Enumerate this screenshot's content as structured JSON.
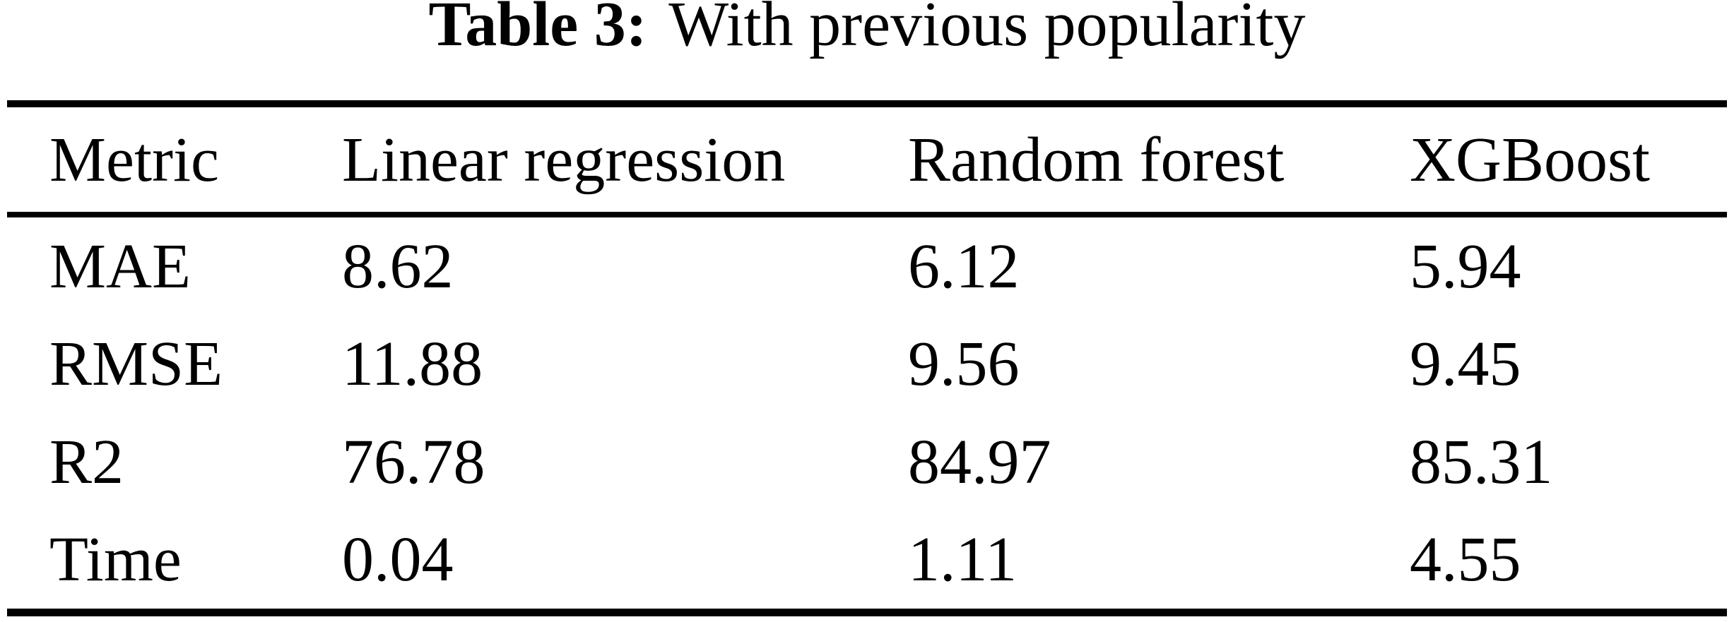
{
  "caption": {
    "label": "Table 3:",
    "text": "With previous popularity"
  },
  "table": {
    "columns": [
      "Metric",
      "Linear regression",
      "Random forest",
      "XGBoost"
    ],
    "rows": [
      {
        "metric": "MAE",
        "values": [
          "8.62",
          "6.12",
          "5.94"
        ]
      },
      {
        "metric": "RMSE",
        "values": [
          "11.88",
          "9.56",
          "9.45"
        ]
      },
      {
        "metric": "R2",
        "values": [
          "76.78",
          "84.97",
          "85.31"
        ]
      },
      {
        "metric": "Time",
        "values": [
          "0.04",
          "1.11",
          "4.55"
        ]
      }
    ]
  },
  "colors": {
    "text": "#000000",
    "background": "#ffffff",
    "rule": "#000000"
  }
}
